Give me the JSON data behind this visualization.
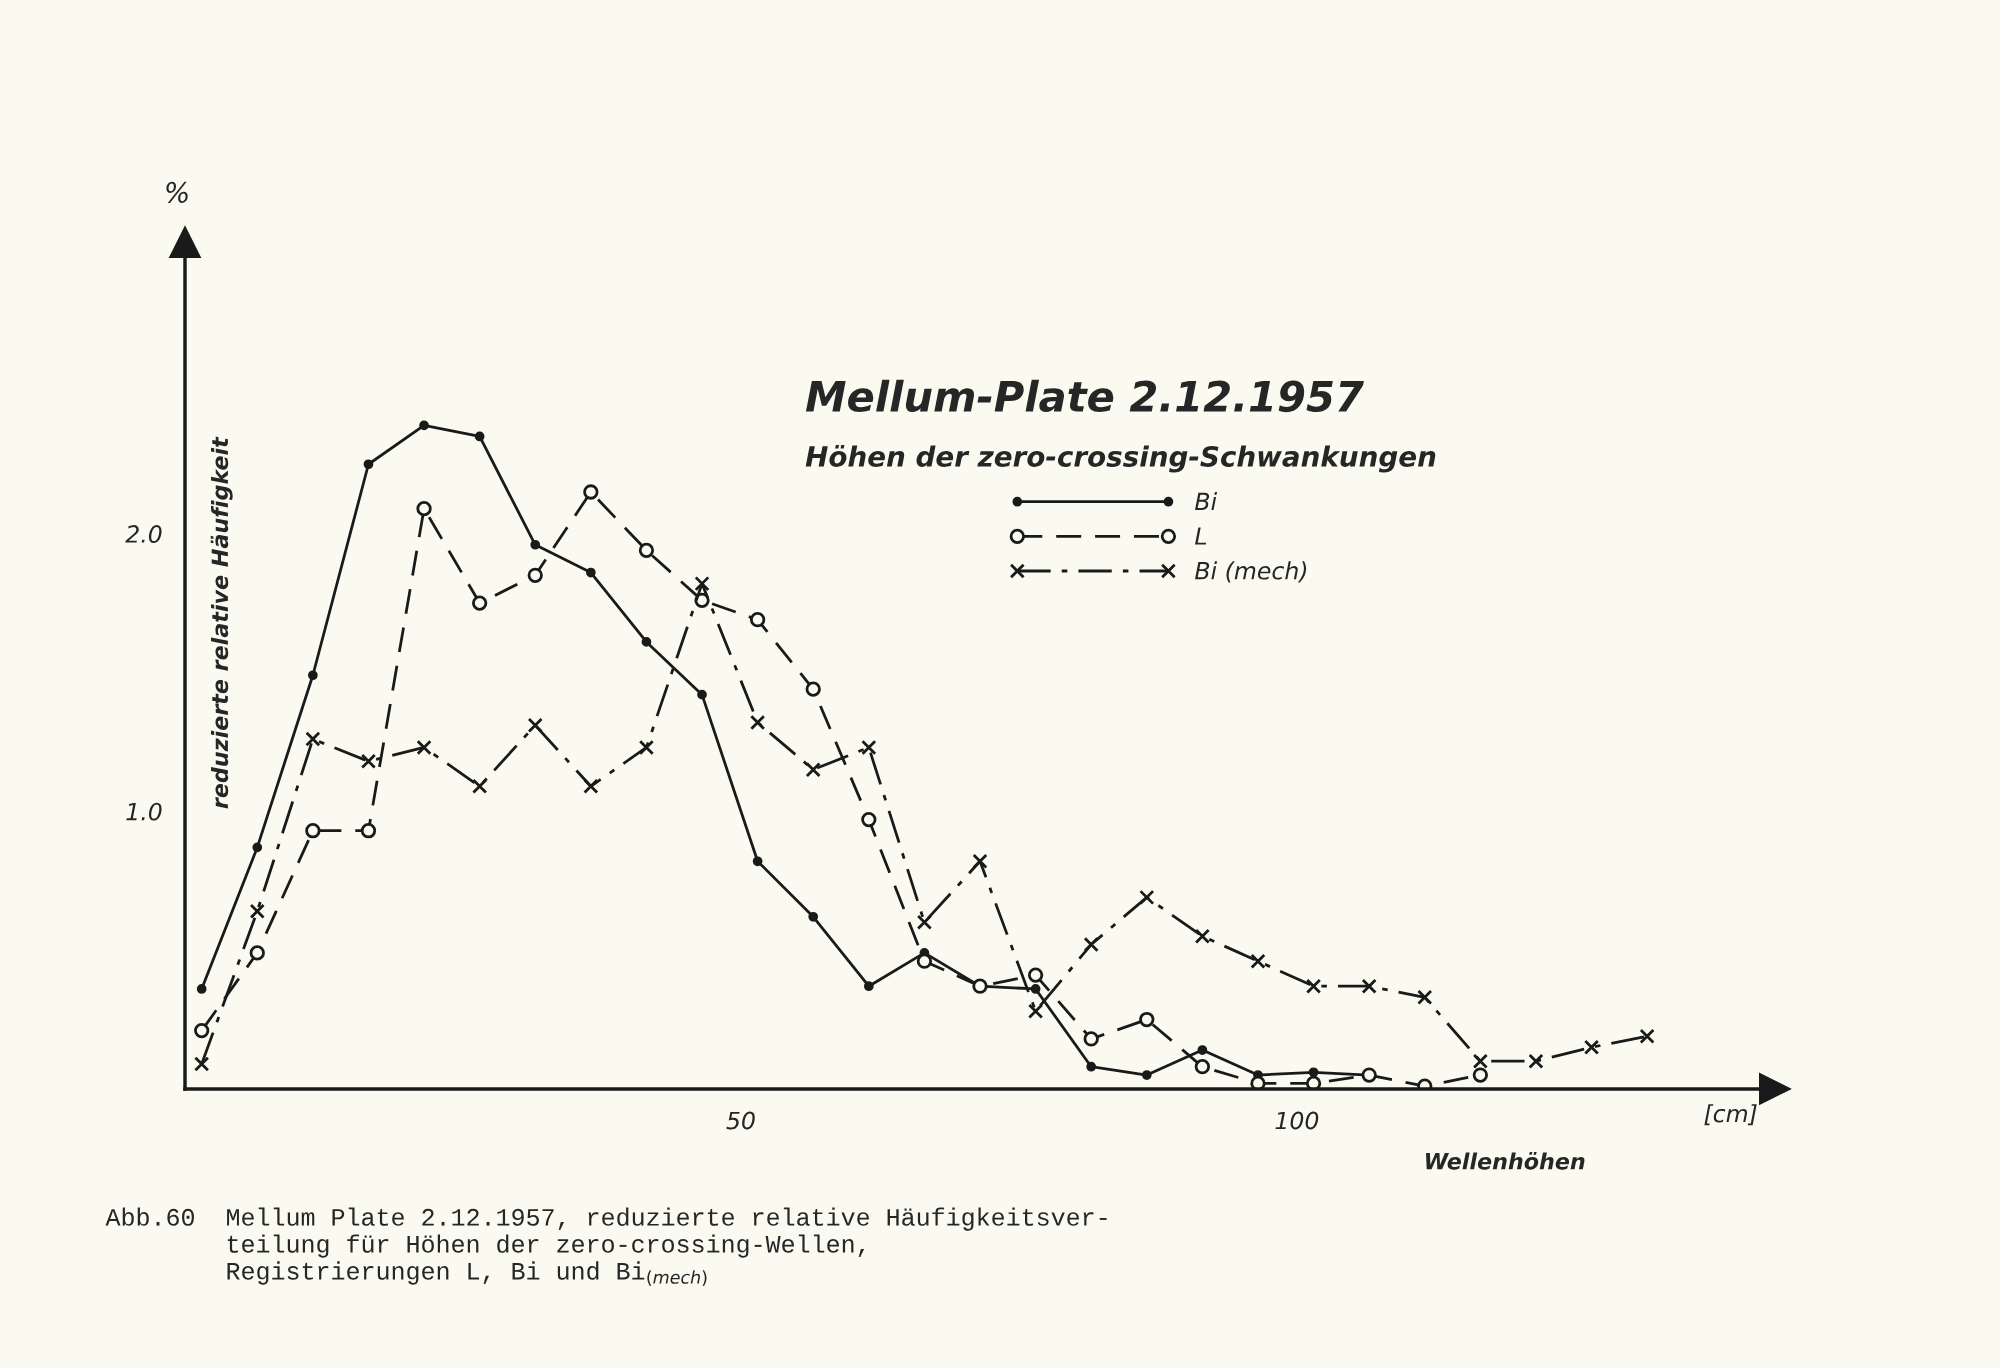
{
  "chart_data": {
    "type": "line",
    "title": "Mellum-Plate 2.12.1957",
    "subtitle": "Höhen der zero-crossing-Schwankungen",
    "xlabel": "Wellenhöhen",
    "ylabel": "reduzierte relative Häufigkeit",
    "annotations": [
      "%",
      "[cm]",
      "Abb.60  Mellum Plate 2.12.1957, reduzierte relative Häufigkeitsver-\n        teilung für Höhen der zero-crossing-Wellen,\n        Registrierungen L, Bi und Bi$_{(mech)}$"
    ],
    "series": [
      {
        "name": "Bi",
        "color": "#1a1a1a",
        "marker": "point",
        "line_style": "solid",
        "x": [
          1.5,
          6.5,
          11.5,
          16.5,
          21.5,
          26.5,
          31.5,
          36.5,
          41.5,
          46.5,
          51.5,
          56.5,
          61.5,
          66.5,
          71.5,
          76.5,
          81.5,
          86.5,
          91.5,
          96.5,
          101.5,
          106.5
        ],
        "values": [
          0.36,
          0.87,
          1.49,
          2.25,
          2.39,
          2.35,
          1.96,
          1.86,
          1.61,
          1.42,
          0.82,
          0.62,
          0.37,
          0.49,
          0.37,
          0.36,
          0.08,
          0.05,
          0.14,
          0.05,
          0.06,
          0.05
        ]
      },
      {
        "name": "L",
        "color": "#1a1a1a",
        "marker": "circle",
        "line_style": "dashed",
        "x": [
          1.5,
          6.5,
          11.5,
          16.5,
          21.5,
          26.5,
          31.5,
          36.5,
          41.5,
          46.5,
          51.5,
          56.5,
          61.5,
          66.5,
          71.5,
          76.5,
          81.5,
          86.5,
          91.5,
          96.5,
          101.5,
          106.5,
          111.5,
          116.5
        ],
        "values": [
          0.21,
          0.49,
          0.93,
          0.93,
          2.09,
          1.75,
          1.85,
          2.15,
          1.94,
          1.76,
          1.69,
          1.44,
          0.97,
          0.46,
          0.37,
          0.41,
          0.18,
          0.25,
          0.08,
          0.02,
          0.02,
          0.05,
          0.01,
          0.05
        ]
      },
      {
        "name": "Bi (mech)",
        "color": "#1a1a1a",
        "marker": "cross",
        "line_style": "dashdot",
        "x": [
          1.5,
          6.5,
          11.5,
          16.5,
          21.5,
          26.5,
          31.5,
          36.5,
          41.5,
          46.5,
          51.5,
          56.5,
          61.5,
          66.5,
          71.5,
          76.5,
          81.5,
          86.5,
          91.5,
          96.5,
          101.5,
          106.5,
          111.5,
          116.5,
          121.5,
          126.5,
          131.5
        ],
        "values": [
          0.09,
          0.64,
          1.26,
          1.18,
          1.23,
          1.09,
          1.31,
          1.09,
          1.23,
          1.82,
          1.32,
          1.15,
          1.23,
          0.6,
          0.82,
          0.28,
          0.52,
          0.69,
          0.55,
          0.46,
          0.37,
          0.37,
          0.33,
          0.1,
          0.1,
          0.15,
          0.19
        ]
      }
    ],
    "xlim": [
      0,
      143
    ],
    "ylim": [
      0,
      3.05
    ],
    "xticks": [
      50,
      100
    ],
    "yticks": [
      {
        "value": 1,
        "label": "1.0"
      },
      {
        "value": 2,
        "label": "2.0"
      }
    ],
    "grid": false,
    "legend": "top right"
  }
}
